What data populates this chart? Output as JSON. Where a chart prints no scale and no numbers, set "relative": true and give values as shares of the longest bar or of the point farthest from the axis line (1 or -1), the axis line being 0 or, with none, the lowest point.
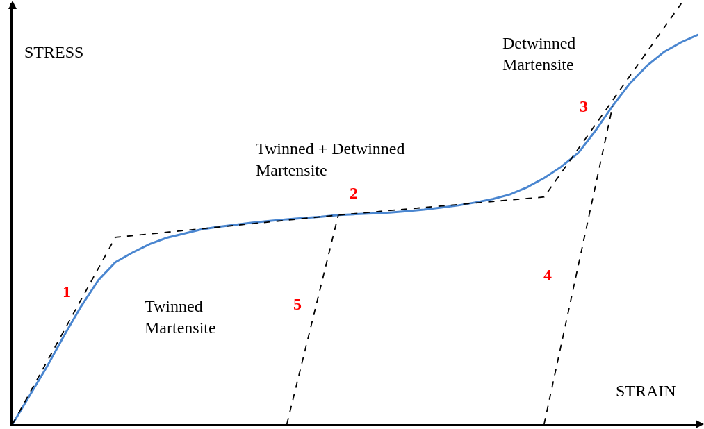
{
  "chart_data": {
    "type": "line",
    "relative": true,
    "xlabel": "STRAIN",
    "ylabel": "STRESS",
    "grid": false,
    "categories": [
      null,
      null,
      null,
      null,
      null,
      null,
      null,
      null,
      null,
      null,
      null,
      null,
      null,
      null,
      null,
      null,
      null,
      null,
      null,
      null,
      null,
      null,
      null,
      null,
      null,
      null,
      null,
      null,
      null,
      null,
      null,
      null,
      null,
      null,
      null,
      null,
      null,
      null,
      null,
      null,
      null
    ],
    "series": [
      {
        "color": "#4a86d0",
        "line_style": "solid",
        "values": [
          0,
          0.068,
          0.136,
          0.21,
          0.28,
          0.342,
          0.385,
          0.408,
          0.428,
          0.443,
          0.453,
          0.463,
          0.469,
          0.474,
          0.479,
          0.483,
          0.487,
          0.49,
          0.493,
          0.497,
          0.499,
          0.501,
          0.503,
          0.506,
          0.51,
          0.515,
          0.52,
          0.527,
          0.535,
          0.546,
          0.563,
          0.585,
          0.612,
          0.645,
          0.698,
          0.757,
          0.81,
          0.852,
          0.885,
          0.908,
          0.926
        ]
      },
      {
        "color": "#000000",
        "line_style": "dashed",
        "values": [
          0,
          null,
          null,
          null,
          null,
          null,
          0.444,
          null,
          null,
          null,
          null,
          null,
          null,
          null,
          null,
          null,
          null,
          null,
          null,
          0.497,
          null,
          null,
          null,
          null,
          null,
          null,
          null,
          null,
          null,
          null,
          null,
          0.54,
          null,
          null,
          null,
          null,
          null,
          null,
          null,
          1.0,
          null
        ]
      },
      {
        "color": "#000000",
        "line_style": "dashed",
        "values": [
          null,
          null,
          null,
          null,
          null,
          null,
          null,
          null,
          null,
          null,
          null,
          null,
          null,
          null,
          null,
          null,
          0,
          null,
          null,
          0.497,
          null,
          null,
          null,
          null,
          null,
          null,
          null,
          null,
          null,
          null,
          null,
          null,
          null,
          null,
          null,
          null,
          null,
          null,
          null,
          null,
          null
        ]
      },
      {
        "color": "#000000",
        "line_style": "dashed",
        "values": [
          null,
          null,
          null,
          null,
          null,
          null,
          null,
          null,
          null,
          null,
          null,
          null,
          null,
          null,
          null,
          null,
          null,
          null,
          null,
          null,
          null,
          null,
          null,
          null,
          null,
          null,
          null,
          null,
          null,
          null,
          null,
          0,
          null,
          null,
          null,
          0.757,
          null,
          null,
          null,
          null,
          null
        ]
      }
    ],
    "annotations": [
      "1",
      "2",
      "3",
      "4",
      "5",
      "Twinned\nMartensite",
      "Twinned + Detwinned\nMartensite",
      "Detwinned\nMartensite"
    ]
  }
}
